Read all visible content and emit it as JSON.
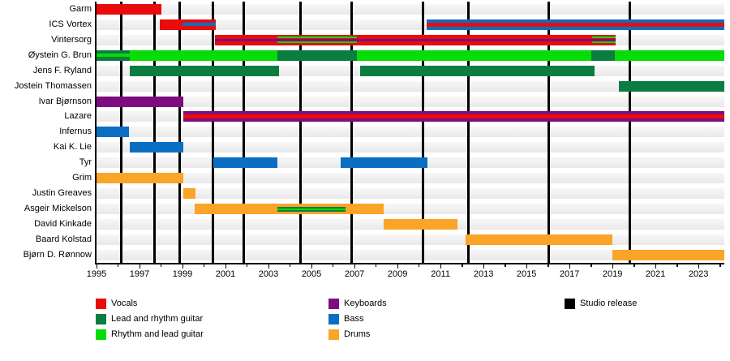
{
  "chart_data": {
    "type": "gantt-timeline",
    "description": "Band membership timeline with instrument roles and studio release markers",
    "x_axis": {
      "start": 1995.0,
      "end": 2024.2,
      "major_tick_years": [
        1995,
        1997,
        1999,
        2001,
        2003,
        2005,
        2007,
        2009,
        2011,
        2013,
        2015,
        2017,
        2019,
        2021,
        2023
      ],
      "minor_tick_step": 1
    },
    "role_colors": {
      "vocals": "#E80C0C",
      "lead_guitar": "#0B7D41",
      "rhythm_guitar": "#06DD06",
      "keyboards": "#7F0C7F",
      "bass": "#0A6FC2",
      "drums": "#FAA428",
      "release": "#000000"
    },
    "rows": [
      {
        "name": "Garm",
        "bars": [
          [
            1995.0,
            1998.0,
            "vocals"
          ]
        ],
        "stripes": []
      },
      {
        "name": "ICS Vortex",
        "bars": [
          [
            1997.95,
            2000.55,
            "vocals"
          ],
          [
            2010.35,
            2024.2,
            "bass"
          ]
        ],
        "stripes": [
          [
            1999.0,
            2000.55,
            "bass",
            4.5,
            4
          ],
          [
            2010.35,
            2024.2,
            "vocals",
            4,
            5
          ]
        ]
      },
      {
        "name": "Vintersorg",
        "bars": [
          [
            2000.5,
            2019.15,
            "vocals"
          ]
        ],
        "stripes": [
          [
            2000.5,
            2019.15,
            "keyboards",
            5,
            3
          ],
          [
            2003.4,
            2007.1,
            "rhythm_guitar",
            2.5,
            2
          ],
          [
            2003.4,
            2007.1,
            "rhythm_guitar",
            8.5,
            2
          ],
          [
            2018.05,
            2019.15,
            "rhythm_guitar",
            2.5,
            2
          ],
          [
            2018.05,
            2019.15,
            "rhythm_guitar",
            8.5,
            2
          ]
        ]
      },
      {
        "name": "Øystein G. Brun",
        "bars": [
          [
            1995.0,
            1996.55,
            "lead_guitar"
          ],
          [
            1996.55,
            2003.4,
            "rhythm_guitar"
          ],
          [
            2003.4,
            2007.1,
            "lead_guitar"
          ],
          [
            2007.1,
            2018.0,
            "rhythm_guitar"
          ],
          [
            2018.0,
            2019.1,
            "lead_guitar"
          ],
          [
            2019.1,
            2024.2,
            "rhythm_guitar"
          ]
        ],
        "stripes": [
          [
            1995.0,
            1996.55,
            "rhythm_guitar",
            4.5,
            4
          ]
        ]
      },
      {
        "name": "Jens F. Ryland",
        "bars": [
          [
            1996.55,
            2003.5,
            "lead_guitar"
          ],
          [
            2007.25,
            2018.15,
            "lead_guitar"
          ]
        ],
        "stripes": []
      },
      {
        "name": "Jostein Thomassen",
        "bars": [
          [
            2019.3,
            2024.2,
            "lead_guitar"
          ]
        ],
        "stripes": []
      },
      {
        "name": "Ivar Bjørnson",
        "bars": [
          [
            1995.0,
            1999.05,
            "keyboards"
          ]
        ],
        "stripes": []
      },
      {
        "name": "Lazare",
        "bars": [
          [
            1999.05,
            2024.2,
            "keyboards"
          ]
        ],
        "stripes": [
          [
            1999.05,
            2024.2,
            "vocals",
            4,
            5
          ]
        ]
      },
      {
        "name": "Infernus",
        "bars": [
          [
            1995.0,
            1996.5,
            "bass"
          ]
        ],
        "stripes": []
      },
      {
        "name": "Kai K. Lie",
        "bars": [
          [
            1996.55,
            1999.05,
            "bass"
          ]
        ],
        "stripes": []
      },
      {
        "name": "Tyr",
        "bars": [
          [
            2000.45,
            2003.4,
            "bass"
          ],
          [
            2006.35,
            2010.4,
            "bass"
          ]
        ],
        "stripes": []
      },
      {
        "name": "Grim",
        "bars": [
          [
            1995.0,
            1999.05,
            "drums"
          ]
        ],
        "stripes": []
      },
      {
        "name": "Justin Greaves",
        "bars": [
          [
            1999.05,
            1999.6,
            "drums"
          ]
        ],
        "stripes": []
      },
      {
        "name": "Asgeir Mickelson",
        "bars": [
          [
            1999.55,
            2008.35,
            "drums"
          ]
        ],
        "stripes": [
          [
            2003.4,
            2006.6,
            "lead_guitar",
            3.5,
            6
          ],
          [
            2003.4,
            2006.6,
            "rhythm_guitar",
            5.5,
            2
          ]
        ]
      },
      {
        "name": "David Kinkade",
        "bars": [
          [
            2008.35,
            2011.8,
            "drums"
          ]
        ],
        "stripes": []
      },
      {
        "name": "Baard Kolstad",
        "bars": [
          [
            2012.15,
            2019.0,
            "drums"
          ]
        ],
        "stripes": []
      },
      {
        "name": "Bjørn D. Rønnow",
        "bars": [
          [
            2019.0,
            2024.2,
            "drums"
          ]
        ],
        "stripes": []
      }
    ],
    "studio_release_years": [
      1996.15,
      1997.7,
      1998.85,
      2000.4,
      2001.85,
      2004.5,
      2006.85,
      2010.2,
      2012.3,
      2016.05,
      2019.8
    ],
    "legend": {
      "columns": [
        [
          {
            "label": "Vocals",
            "role": "vocals"
          },
          {
            "label": "Lead and rhythm guitar",
            "role": "lead_guitar"
          },
          {
            "label": "Rhythm and lead guitar",
            "role": "rhythm_guitar"
          }
        ],
        [
          {
            "label": "Keyboards",
            "role": "keyboards"
          },
          {
            "label": "Bass",
            "role": "bass"
          },
          {
            "label": "Drums",
            "role": "drums"
          }
        ],
        [
          {
            "label": "Studio release",
            "role": "release"
          }
        ]
      ]
    }
  }
}
